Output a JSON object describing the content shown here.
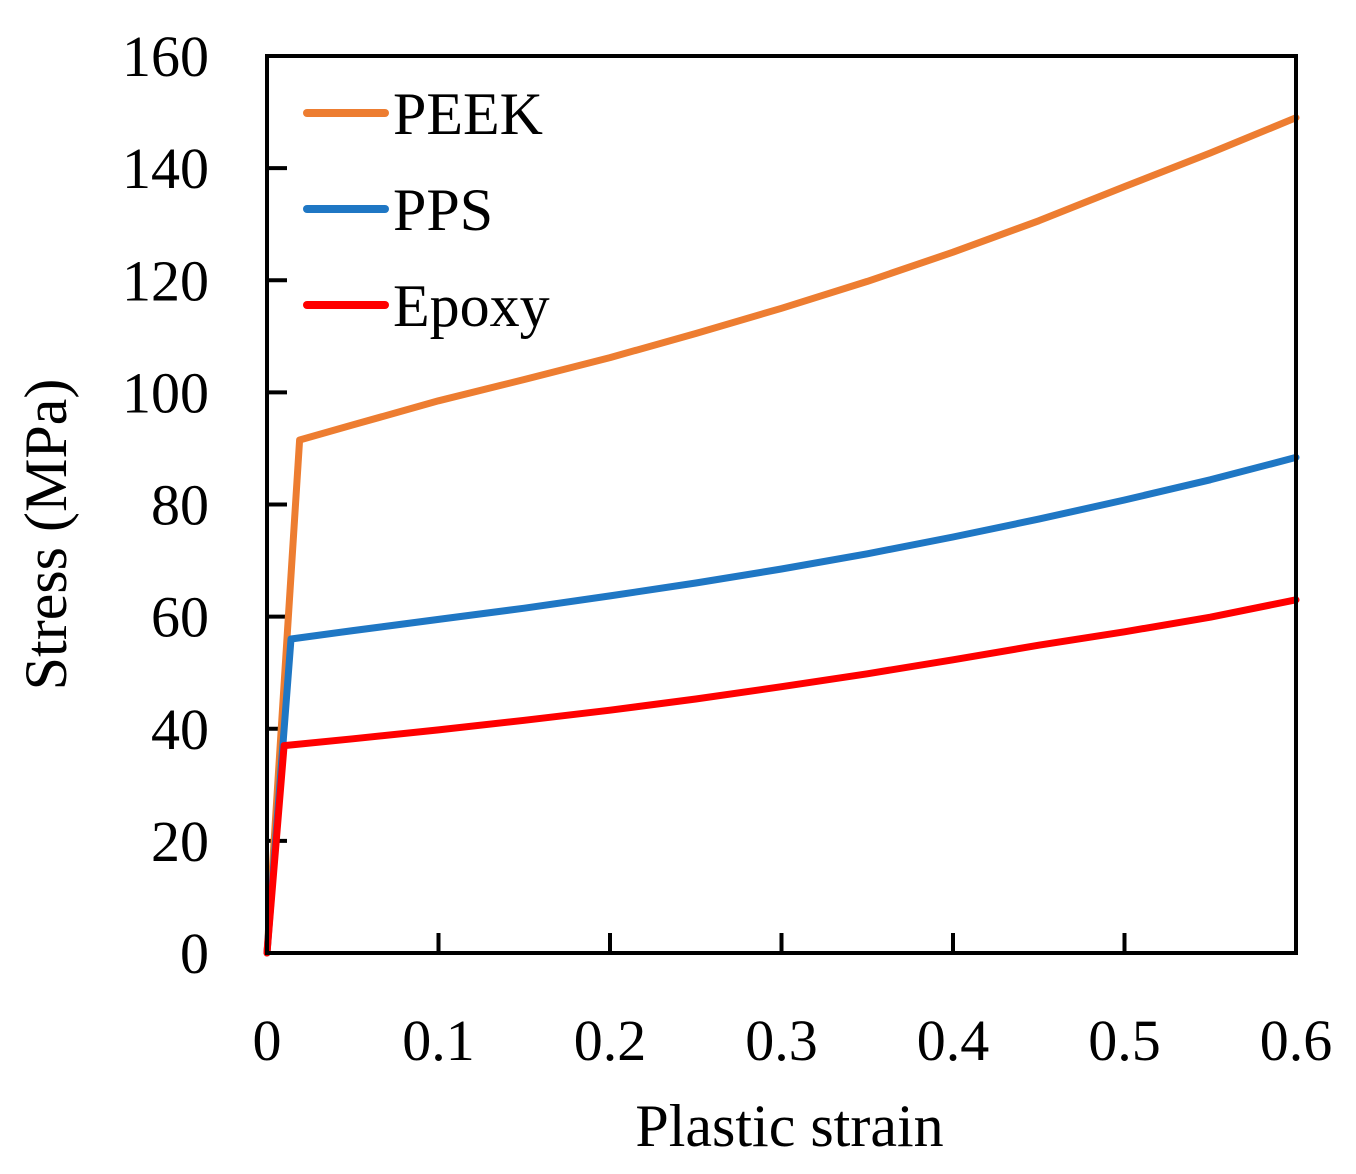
{
  "chart_data": {
    "type": "line",
    "title": "",
    "xlabel": "Plastic strain",
    "ylabel": "Stress (MPa)",
    "xlim": [
      0,
      0.6
    ],
    "ylim": [
      0,
      160
    ],
    "x_ticks": [
      0,
      0.1,
      0.2,
      0.3,
      0.4,
      0.5,
      0.6
    ],
    "x_tick_labels": [
      "0",
      "0.1",
      "0.2",
      "0.3",
      "0.4",
      "0.5",
      "0.6"
    ],
    "y_ticks": [
      0,
      20,
      40,
      60,
      80,
      100,
      120,
      140,
      160
    ],
    "y_tick_labels": [
      "0",
      "20",
      "40",
      "60",
      "80",
      "100",
      "120",
      "140",
      "160"
    ],
    "grid": false,
    "legend_position": "top-left",
    "series": [
      {
        "name": "PEEK",
        "color": "#ED7D31",
        "x": [
          0,
          0.019,
          0.05,
          0.1,
          0.15,
          0.2,
          0.25,
          0.3,
          0.35,
          0.4,
          0.45,
          0.5,
          0.55,
          0.6
        ],
        "y": [
          0,
          91.5,
          94.2,
          98.5,
          102.3,
          106.2,
          110.5,
          115.0,
          119.8,
          125.0,
          130.6,
          136.7,
          142.7,
          149.0
        ]
      },
      {
        "name": "PPS",
        "color": "#1F77C4",
        "x": [
          0,
          0.014,
          0.05,
          0.1,
          0.15,
          0.2,
          0.25,
          0.3,
          0.35,
          0.4,
          0.45,
          0.5,
          0.55,
          0.6
        ],
        "y": [
          0,
          56,
          57.5,
          59.5,
          61.5,
          63.7,
          66.0,
          68.5,
          71.2,
          74.2,
          77.4,
          80.8,
          84.4,
          88.4
        ]
      },
      {
        "name": "Epoxy",
        "color": "#FF0000",
        "x": [
          0,
          0.01,
          0.05,
          0.1,
          0.15,
          0.2,
          0.25,
          0.3,
          0.35,
          0.4,
          0.45,
          0.5,
          0.55,
          0.6
        ],
        "y": [
          0,
          37,
          38.2,
          39.8,
          41.5,
          43.3,
          45.3,
          47.5,
          49.8,
          52.3,
          54.9,
          57.3,
          59.9,
          63.0
        ]
      }
    ]
  }
}
